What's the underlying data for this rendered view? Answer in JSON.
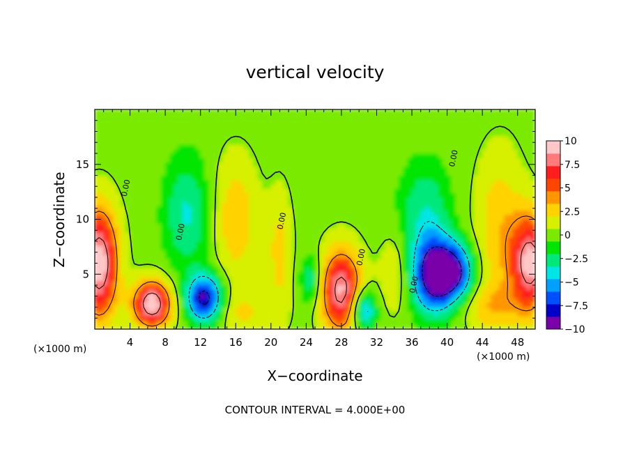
{
  "chart_data": {
    "type": "heatmap",
    "title": "vertical velocity",
    "xlabel": "X−coordinate",
    "ylabel": "Z−coordinate",
    "x_multiplier": "(×1000 m)",
    "y_multiplier": "(×1000 m)",
    "xlim": [
      0,
      50
    ],
    "ylim": [
      0,
      20
    ],
    "x_ticks": [
      4,
      8,
      12,
      16,
      20,
      24,
      28,
      32,
      36,
      40,
      44,
      48
    ],
    "y_ticks": [
      5,
      10,
      15
    ],
    "x_tick_labels": [
      "4",
      "8",
      "12",
      "16",
      "20",
      "24",
      "28",
      "32",
      "36",
      "40",
      "44",
      "48"
    ],
    "y_tick_labels": [
      "5",
      "10",
      "15"
    ],
    "colorbar": {
      "min": -10,
      "max": 10,
      "ticks": [
        10,
        7.5,
        5,
        2.5,
        0,
        -2.5,
        -5,
        -7.5,
        -10
      ],
      "tick_labels": [
        "10",
        "7.5",
        "5",
        "2.5",
        "0",
        "−2.5",
        "−5",
        "−7.5",
        "−10"
      ],
      "colors": [
        "#7a00aa",
        "#0000c8",
        "#0050ff",
        "#00a0ff",
        "#00e6e6",
        "#00e87a",
        "#00e600",
        "#7aeb00",
        "#d6f000",
        "#ffd200",
        "#ff9600",
        "#ff4600",
        "#ff1e1e",
        "#ff7a7a",
        "#ffc8c8"
      ]
    },
    "contour_interval_text": "CONTOUR INTERVAL = 4.000E+00",
    "contour_label": "0.00",
    "features": [
      {
        "x": 0.5,
        "z": 6.0,
        "value": 10,
        "sx": 1.5,
        "sz": 3.5
      },
      {
        "x": 6.5,
        "z": 2.3,
        "value": 10,
        "sx": 1.5,
        "sz": 1.5
      },
      {
        "x": 28.0,
        "z": 3.5,
        "value": 9,
        "sx": 1.6,
        "sz": 2.6
      },
      {
        "x": 49.5,
        "z": 6.0,
        "value": 9,
        "sx": 1.5,
        "sz": 3.0
      },
      {
        "x": 12.5,
        "z": 2.8,
        "value": -9,
        "sx": 1.4,
        "sz": 1.5
      },
      {
        "x": 38.5,
        "z": 5.0,
        "value": -10,
        "sx": 1.7,
        "sz": 2.4
      },
      {
        "x": 41.0,
        "z": 5.2,
        "value": -7,
        "sx": 1.5,
        "sz": 1.8
      },
      {
        "x": 30.5,
        "z": 1.8,
        "value": -6,
        "sx": 1.0,
        "sz": 1.3
      },
      {
        "x": 16.0,
        "z": 10.0,
        "value": 3,
        "sx": 1.8,
        "sz": 4.0
      },
      {
        "x": 46.0,
        "z": 9.0,
        "value": 3,
        "sx": 2.0,
        "sz": 5.0
      },
      {
        "x": 10.5,
        "z": 10.5,
        "value": -3.5,
        "sx": 1.8,
        "sz": 3.5
      },
      {
        "x": 37.5,
        "z": 11.0,
        "value": -3,
        "sx": 2.0,
        "sz": 3.0
      },
      {
        "x": 24.5,
        "z": 4.5,
        "value": -3.5,
        "sx": 0.8,
        "sz": 1.5
      },
      {
        "x": 21.0,
        "z": 7.0,
        "value": 2.5,
        "sx": 1.0,
        "sz": 4.0
      },
      {
        "x": 34.0,
        "z": 5.0,
        "value": 2.0,
        "sx": 1.2,
        "sz": 2.5
      },
      {
        "x": 17.0,
        "z": 1.5,
        "value": 2.0,
        "sx": 2.5,
        "sz": 1.5
      },
      {
        "x": 45.0,
        "z": 2.0,
        "value": 2.5,
        "sx": 2.5,
        "sz": 1.5
      }
    ]
  }
}
